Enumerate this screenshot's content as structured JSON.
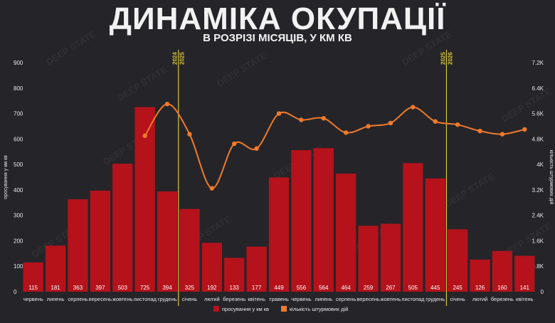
{
  "header": {
    "title": "ДИНАМІКА ОКУПАЦІЇ",
    "subtitle": "В РОЗРІЗІ МІСЯЦІВ, У КМ КВ"
  },
  "watermark": "DEEP STATE",
  "colors": {
    "background": "#252529",
    "bar": "#b5121b",
    "line": "#f07a2c",
    "divider": "#d8c431",
    "text": "#e8e8e8"
  },
  "chart_data": {
    "type": "bar",
    "categories": [
      "червень",
      "липень",
      "серпень",
      "вересень",
      "жовтень",
      "листопад",
      "грудень",
      "січень",
      "лютий",
      "березень",
      "квітень",
      "травень",
      "червень",
      "липень",
      "серпень",
      "вересень",
      "жовтень",
      "листопад",
      "грудень",
      "січень",
      "лютий",
      "березень",
      "квітень"
    ],
    "series": [
      {
        "name": "просування у км кв",
        "type": "bar",
        "axis": "left",
        "values": [
          115,
          181,
          363,
          397,
          503,
          725,
          394,
          325,
          192,
          133,
          177,
          449,
          556,
          564,
          464,
          259,
          267,
          505,
          445,
          245,
          126,
          160,
          141
        ]
      },
      {
        "name": "кількість штурмових дій",
        "type": "line",
        "axis": "right",
        "values": [
          null,
          null,
          null,
          null,
          null,
          4900,
          5900,
          4950,
          3250,
          4650,
          4500,
          5600,
          5400,
          5450,
          5000,
          5200,
          5300,
          5800,
          5350,
          5250,
          5050,
          4950,
          5100
        ]
      }
    ],
    "year_markers": [
      {
        "between": [
          6,
          7
        ],
        "labels": [
          "2024",
          "2025"
        ]
      },
      {
        "between": [
          18,
          19
        ],
        "labels": [
          "2025",
          "2026"
        ]
      }
    ],
    "ylabel": "просування у км кв",
    "y2label": "кількість штурмових дій",
    "ylim": [
      0,
      900
    ],
    "y2lim": [
      0,
      7200
    ],
    "yticks": [
      "0",
      "100",
      "200",
      "300",
      "400",
      "500",
      "600",
      "700",
      "800",
      "900"
    ],
    "y2ticks": [
      "0",
      "0.8K",
      "1.6K",
      "2.4K",
      "3.2K",
      "4K",
      "4.8K",
      "5.6K",
      "6.4K",
      "7.2K"
    ],
    "legend_position": "bottom-center",
    "grid": false
  }
}
